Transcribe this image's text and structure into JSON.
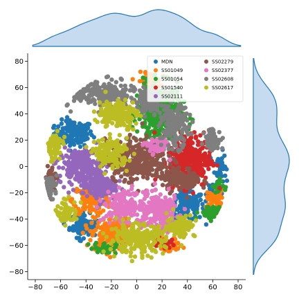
{
  "chart_data": {
    "type": "scatter",
    "title": "",
    "xlabel": "",
    "ylabel": "",
    "xlim": [
      -86,
      86
    ],
    "ylim": [
      -86,
      86
    ],
    "x_ticks": [
      -80,
      -60,
      -40,
      -20,
      0,
      20,
      40,
      60,
      80
    ],
    "y_ticks": [
      -80,
      -60,
      -40,
      -20,
      0,
      20,
      40,
      60,
      80
    ],
    "grid": false,
    "legend": {
      "location": "top-right",
      "columns": 2
    },
    "marginals": {
      "top": "kde of x",
      "right": "kde of y",
      "fill": "#c6dbef",
      "line": "#1f77b4"
    },
    "series": [
      {
        "name": "MDN",
        "color": "#1f77b4",
        "clusters": [
          [
            -50,
            25,
            14,
            9
          ],
          [
            66,
            0,
            4,
            10
          ],
          [
            -42,
            -45,
            10,
            8
          ],
          [
            40,
            -30,
            12,
            10
          ],
          [
            62,
            -18,
            6,
            6
          ]
        ]
      },
      {
        "name": "SS01049",
        "color": "#ff7f0e",
        "clusters": [
          [
            -35,
            -25,
            14,
            10
          ],
          [
            -20,
            -52,
            14,
            12
          ],
          [
            25,
            -60,
            10,
            5
          ],
          [
            62,
            -25,
            6,
            8
          ],
          [
            10,
            65,
            8,
            6
          ]
        ]
      },
      {
        "name": "SS01054",
        "color": "#2ca02c",
        "clusters": [
          [
            18,
            40,
            16,
            20
          ],
          [
            -25,
            -62,
            8,
            4
          ],
          [
            58,
            -35,
            8,
            5
          ],
          [
            64,
            -15,
            4,
            5
          ]
        ]
      },
      {
        "name": "SS01540",
        "color": "#d62728",
        "clusters": [
          [
            42,
            5,
            15,
            18
          ],
          [
            20,
            -58,
            6,
            4
          ]
        ]
      },
      {
        "name": "SS02111",
        "color": "#9467bd",
        "clusters": [
          [
            -45,
            0,
            15,
            12
          ],
          [
            -30,
            -15,
            12,
            10
          ]
        ]
      },
      {
        "name": "SS02279",
        "color": "#8c564b",
        "clusters": [
          [
            0,
            5,
            22,
            14
          ],
          [
            35,
            -10,
            14,
            8
          ],
          [
            -68,
            -10,
            4,
            10
          ]
        ]
      },
      {
        "name": "SS02377",
        "color": "#e377c2",
        "clusters": [
          [
            18,
            -35,
            16,
            12
          ],
          [
            -10,
            -30,
            14,
            10
          ],
          [
            15,
            15,
            8,
            6
          ]
        ]
      },
      {
        "name": "SS02608",
        "color": "#7f7f7f",
        "clusters": [
          [
            -25,
            55,
            22,
            9
          ],
          [
            30,
            30,
            10,
            14
          ],
          [
            60,
            20,
            6,
            8
          ],
          [
            -68,
            -15,
            5,
            8
          ],
          [
            10,
            50,
            10,
            8
          ]
        ]
      },
      {
        "name": "SS02617",
        "color": "#bcbd22",
        "clusters": [
          [
            -15,
            40,
            14,
            10
          ],
          [
            -65,
            15,
            6,
            10
          ],
          [
            0,
            -55,
            20,
            10
          ],
          [
            35,
            -45,
            10,
            8
          ],
          [
            -55,
            -35,
            8,
            8
          ],
          [
            -20,
            10,
            12,
            10
          ]
        ]
      }
    ]
  }
}
